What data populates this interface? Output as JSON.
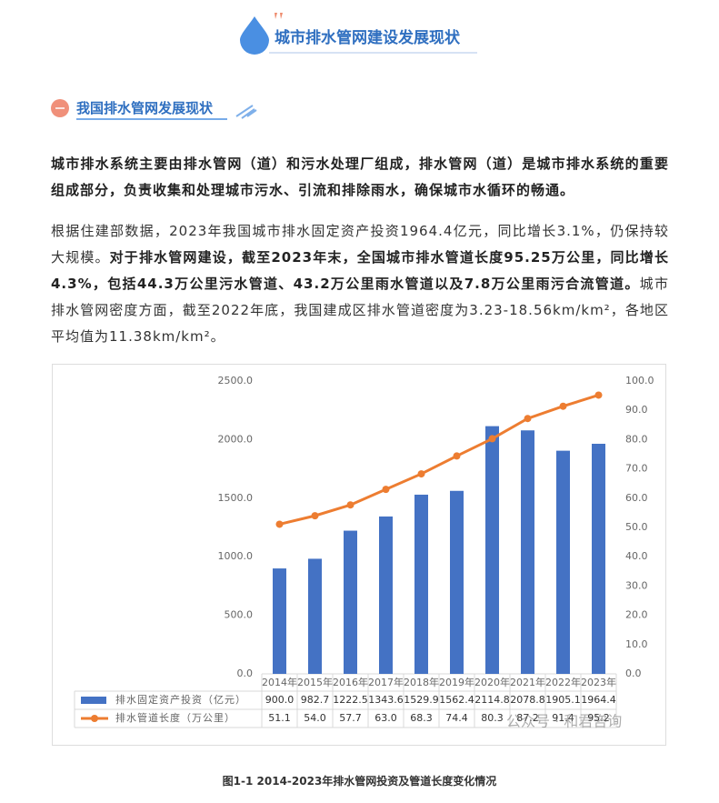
{
  "header": {
    "title": "城市排水管网建设发展现状"
  },
  "section": {
    "title": "我国排水管网发展现状"
  },
  "paragraphs": [
    "城市排水系统主要由排水管网（道）和污水处理厂组成，排水管网（道）是城市排水系统的重要组成部分，负责收集和处理城市污水、引流和排除雨水，确保城市水循环的畅通。",
    [
      "根据住建部数据，2023年我国城市排水固定资产投资1964.4亿元，同比增长3.1%，仍保持较大规模。",
      "对于排水管网建设，截至2023年末，全国城市排水管道长度95.25万公里，同比增长4.3%，包括44.3万公里污水管道、43.2万公里雨水管道以及7.8万公里雨污合流管道。",
      "城市排水管网密度方面，截至2022年底，我国建成区排水管道密度为3.23-18.56km/km²，各地区平均值为11.38km/km²。"
    ]
  ],
  "chart_data": {
    "type": "bar-line",
    "categories": [
      "2014年",
      "2015年",
      "2016年",
      "2017年",
      "2018年",
      "2019年",
      "2020年",
      "2021年",
      "2022年",
      "2023年"
    ],
    "series": [
      {
        "name": "排水固定资产投资（亿元）",
        "type": "bar",
        "color": "#4472c4",
        "values": [
          900.0,
          982.7,
          1222.5,
          1343.6,
          1529.9,
          1562.4,
          2114.8,
          2078.8,
          1905.1,
          1964.4
        ],
        "value_labels": [
          "900.0",
          "982.7",
          "1222.5",
          "1343.6",
          "1529.9",
          "1562.4",
          "2114.8",
          "2078.8",
          "1905.1",
          "1964.4"
        ]
      },
      {
        "name": "排水管道长度（万公里）",
        "type": "line",
        "axis": "y2",
        "color": "#ed7d31",
        "values": [
          51.1,
          54.0,
          57.7,
          63.0,
          68.3,
          74.4,
          80.3,
          87.2,
          91.4,
          95.2
        ],
        "value_labels": [
          "51.1",
          "54.0",
          "57.7",
          "63.0",
          "68.3",
          "74.4",
          "80.3",
          "87.2",
          "91.4",
          "95.2"
        ]
      }
    ],
    "ylim": [
      0,
      2500
    ],
    "yticks": [
      {
        "value": 0,
        "label": "0.0"
      },
      {
        "value": 500,
        "label": "500.0"
      },
      {
        "value": 1000,
        "label": "1000.0"
      },
      {
        "value": 1500,
        "label": "1500.0"
      },
      {
        "value": 2000,
        "label": "2000.0"
      },
      {
        "value": 2500,
        "label": "2500.0"
      }
    ],
    "y2lim": [
      0,
      100
    ],
    "y2ticks": [
      {
        "value": 0,
        "label": "0.0"
      },
      {
        "value": 10,
        "label": "10.0"
      },
      {
        "value": 20,
        "label": "20.0"
      },
      {
        "value": 30,
        "label": "30.0"
      },
      {
        "value": 40,
        "label": "40.0"
      },
      {
        "value": 50,
        "label": "50.0"
      },
      {
        "value": 60,
        "label": "60.0"
      },
      {
        "value": 70,
        "label": "70.0"
      },
      {
        "value": 80,
        "label": "80.0"
      },
      {
        "value": 90,
        "label": "90.0"
      },
      {
        "value": 100,
        "label": "100.0"
      }
    ],
    "data_table": true
  },
  "watermark": "公众号 · 和君咨询",
  "caption": "图1-1   2014-2023年排水管网投资及管道长度变化情况"
}
